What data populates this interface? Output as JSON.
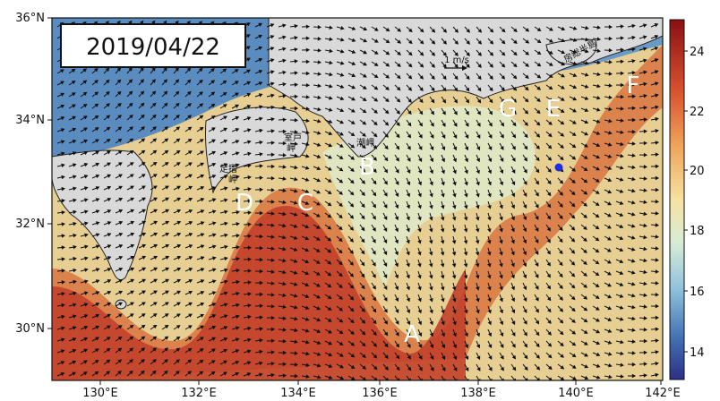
{
  "date": "2019/04/22",
  "scale_label": "1 m/s",
  "y_ticks": [
    "36°N",
    "34°N",
    "32°N",
    "30°N"
  ],
  "x_ticks": [
    "130°E",
    "132°E",
    "134°E",
    "136°E",
    "138°E",
    "140°E",
    "142°E"
  ],
  "colorbar_ticks": [
    "24",
    "22",
    "20",
    "18",
    "16",
    "14"
  ],
  "point_labels": [
    "A",
    "B",
    "C",
    "D",
    "E",
    "F",
    "G"
  ],
  "place_names": {
    "ashizuri": "足摺",
    "ashizuri2": "岬",
    "muroto": "室戸",
    "muroto2": "岬",
    "shionomisaki": "潮岬",
    "boso": "房総半島"
  },
  "colors": {
    "land": "#d9d9d9",
    "warm": "#c9452f",
    "cool": "#e8e0a8",
    "cold": "#4f83b8",
    "marker": "#1f2fe0"
  }
}
